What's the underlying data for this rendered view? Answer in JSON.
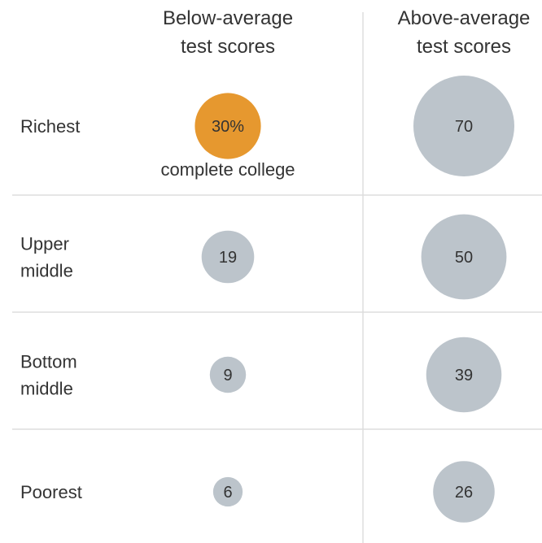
{
  "chart_data": {
    "type": "bubble-grid",
    "columns": [
      "Below-average test scores",
      "Above-average test scores"
    ],
    "column_header_lines": [
      [
        "Below-average",
        "test scores"
      ],
      [
        "Above-average",
        "test scores"
      ]
    ],
    "rows": [
      "Richest",
      "Upper middle",
      "Bottom middle",
      "Poorest"
    ],
    "row_label_lines": [
      [
        "Richest"
      ],
      [
        "Upper",
        "middle"
      ],
      [
        "Bottom",
        "middle"
      ],
      [
        "Poorest"
      ]
    ],
    "series": [
      {
        "name": "Below-average test scores",
        "values": [
          30,
          19,
          9,
          6
        ]
      },
      {
        "name": "Above-average test scores",
        "values": [
          70,
          50,
          39,
          26
        ]
      }
    ],
    "value_labels": [
      [
        "30%",
        "19",
        "9",
        "6"
      ],
      [
        "70",
        "50",
        "39",
        "26"
      ]
    ],
    "annotation": "complete college",
    "highlight": {
      "column": 0,
      "row": 0
    },
    "colors": {
      "highlight": "#E6982F",
      "bubble": "#BCC4CB",
      "gridline": "#DDDDDD",
      "text": "#333333"
    }
  }
}
